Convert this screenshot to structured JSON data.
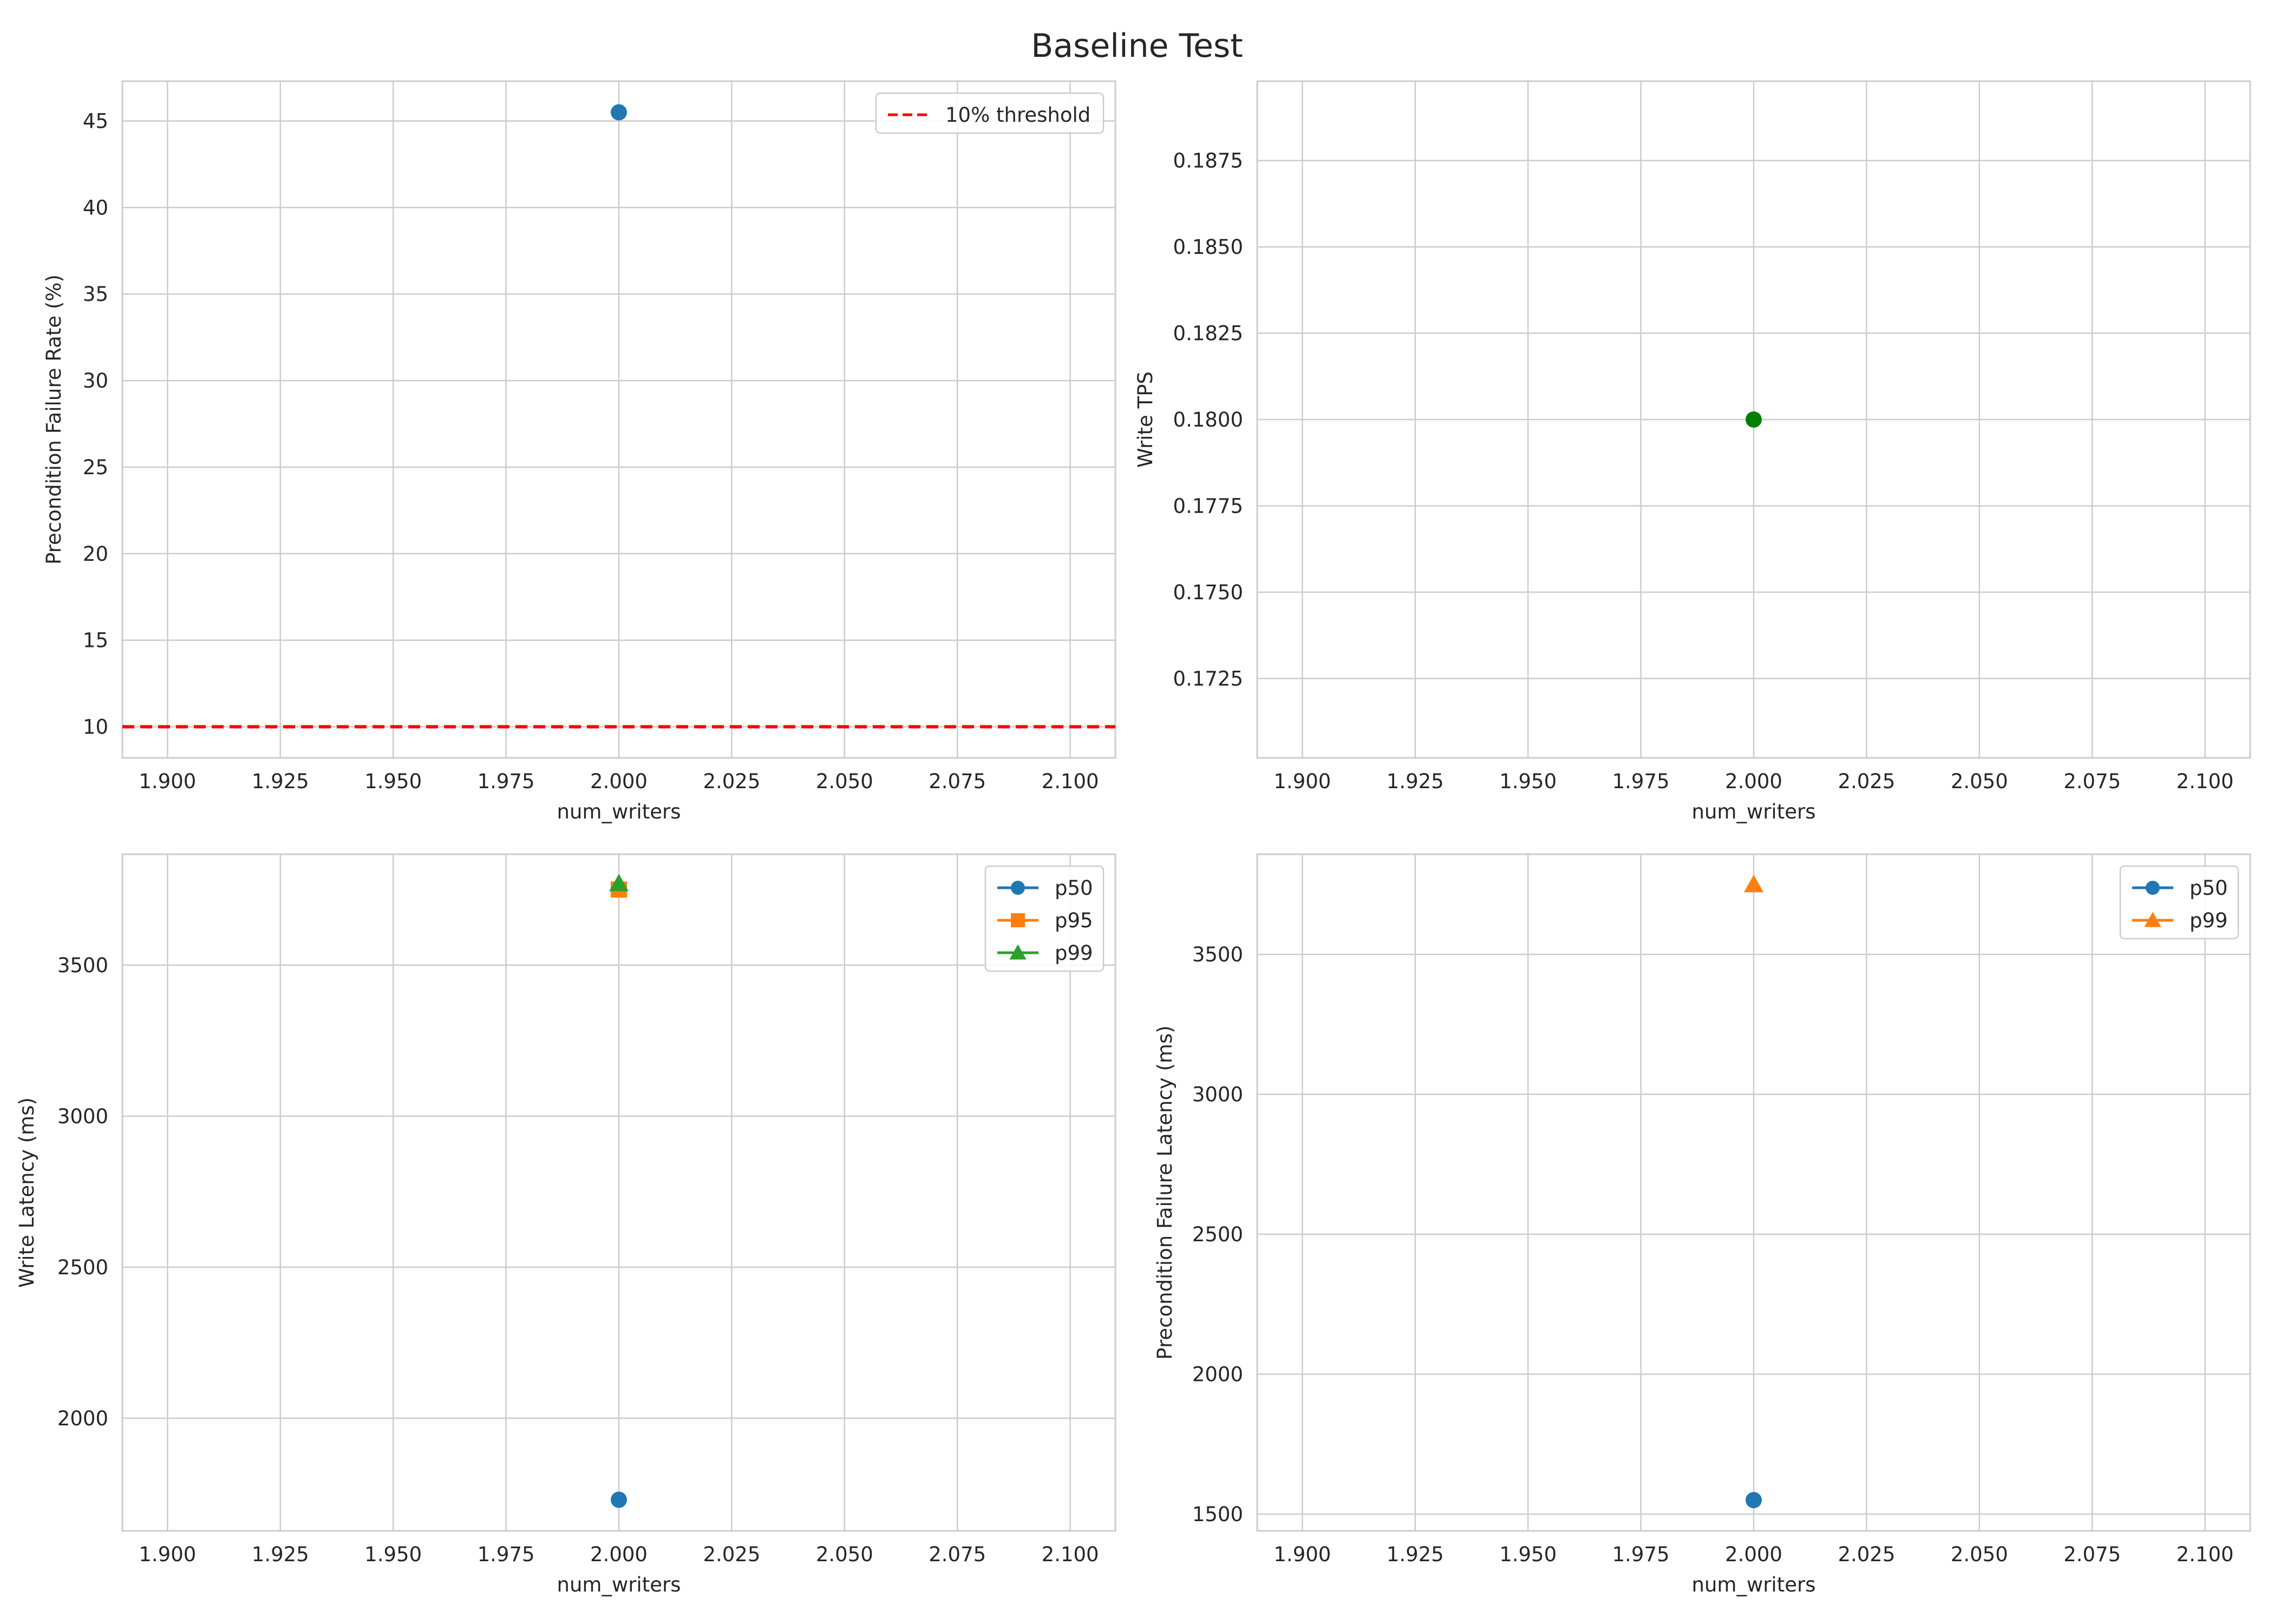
{
  "title": "Baseline Test",
  "chart_data": [
    {
      "type": "scatter",
      "xlabel": "num_writers",
      "ylabel": "Precondition Failure Rate (%)",
      "xlim": [
        1.89,
        2.11
      ],
      "ylim": [
        8.2,
        47.3
      ],
      "xticks": [
        "1.900",
        "1.925",
        "1.950",
        "1.975",
        "2.000",
        "2.025",
        "2.050",
        "2.075",
        "2.100"
      ],
      "yticks": [
        "10",
        "15",
        "20",
        "25",
        "30",
        "35",
        "40",
        "45"
      ],
      "grid": true,
      "legend": {
        "position": "upper-right",
        "entries": [
          "10% threshold"
        ]
      },
      "series": [
        {
          "x": [
            2.0
          ],
          "y": [
            45.5
          ],
          "color": "#1f77b4",
          "marker": "circle"
        }
      ],
      "hlines": [
        {
          "name": "10% threshold",
          "y": 10,
          "color": "#ff0000",
          "style": "dashed"
        }
      ]
    },
    {
      "type": "scatter",
      "xlabel": "num_writers",
      "ylabel": "Write TPS",
      "xlim": [
        1.89,
        2.11
      ],
      "ylim": [
        0.1702,
        0.1898
      ],
      "xticks": [
        "1.900",
        "1.925",
        "1.950",
        "1.975",
        "2.000",
        "2.025",
        "2.050",
        "2.075",
        "2.100"
      ],
      "yticks": [
        "0.1725",
        "0.1750",
        "0.1775",
        "0.1800",
        "0.1825",
        "0.1850",
        "0.1875"
      ],
      "grid": true,
      "series": [
        {
          "x": [
            2.0
          ],
          "y": [
            0.18
          ],
          "color": "#008000",
          "marker": "circle"
        }
      ]
    },
    {
      "type": "line",
      "xlabel": "num_writers",
      "ylabel": "Write Latency (ms)",
      "xlim": [
        1.89,
        2.11
      ],
      "ylim": [
        1627,
        3867
      ],
      "xticks": [
        "1.900",
        "1.925",
        "1.950",
        "1.975",
        "2.000",
        "2.025",
        "2.050",
        "2.075",
        "2.100"
      ],
      "yticks": [
        "2000",
        "2500",
        "3000",
        "3500"
      ],
      "grid": true,
      "legend": {
        "position": "upper-right",
        "entries": [
          "p50",
          "p95",
          "p99"
        ]
      },
      "series": [
        {
          "name": "p50",
          "x": [
            2.0
          ],
          "y": [
            1730
          ],
          "color": "#1f77b4",
          "marker": "circle"
        },
        {
          "name": "p95",
          "x": [
            2.0
          ],
          "y": [
            3750
          ],
          "color": "#ff7f0e",
          "marker": "square"
        },
        {
          "name": "p99",
          "x": [
            2.0
          ],
          "y": [
            3770
          ],
          "color": "#2ca02c",
          "marker": "triangle"
        }
      ]
    },
    {
      "type": "line",
      "xlabel": "num_writers",
      "ylabel": "Precondition Failure Latency (ms)",
      "xlim": [
        1.89,
        2.11
      ],
      "ylim": [
        1440,
        3858
      ],
      "xticks": [
        "1.900",
        "1.925",
        "1.950",
        "1.975",
        "2.000",
        "2.025",
        "2.050",
        "2.075",
        "2.100"
      ],
      "yticks": [
        "1500",
        "2000",
        "2500",
        "3000",
        "3500"
      ],
      "grid": true,
      "legend": {
        "position": "upper-right",
        "entries": [
          "p50",
          "p99"
        ]
      },
      "series": [
        {
          "name": "p50",
          "x": [
            2.0
          ],
          "y": [
            1550
          ],
          "color": "#1f77b4",
          "marker": "circle"
        },
        {
          "name": "p99",
          "x": [
            2.0
          ],
          "y": [
            3750
          ],
          "color": "#ff7f0e",
          "marker": "triangle"
        }
      ]
    }
  ]
}
